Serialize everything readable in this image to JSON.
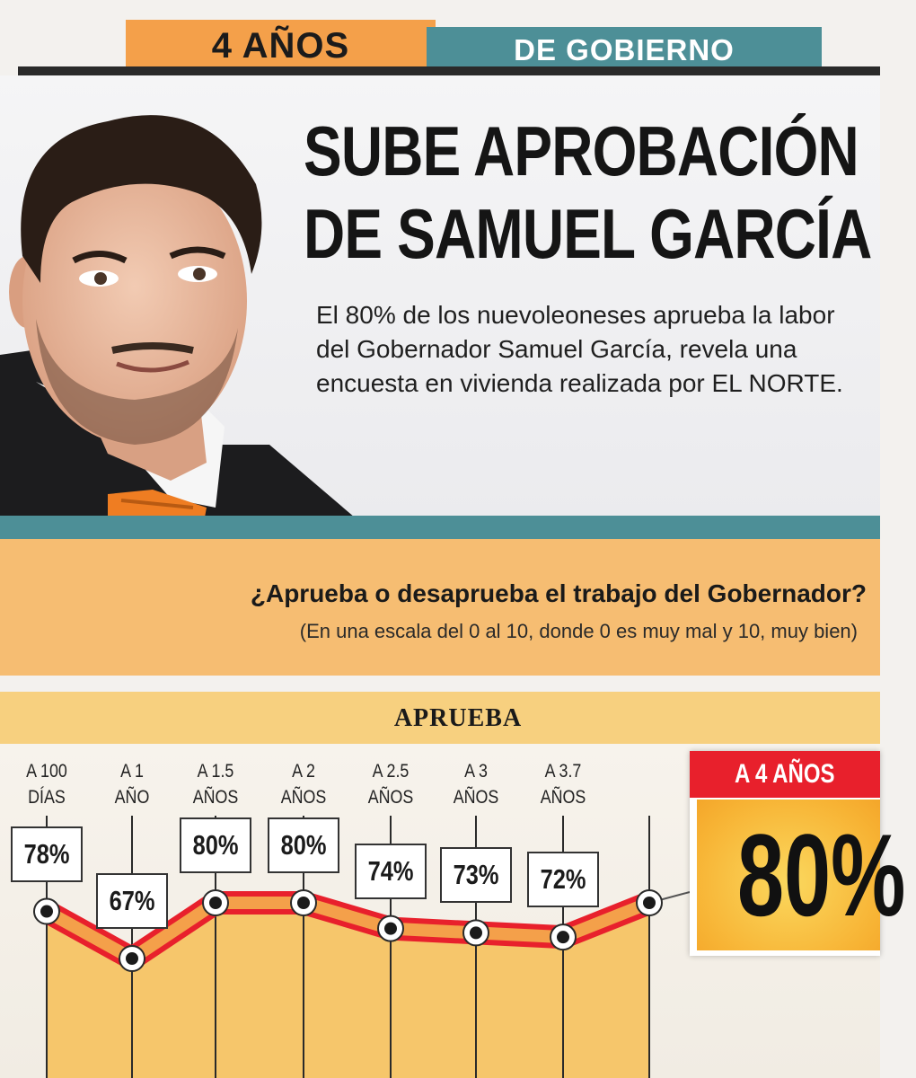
{
  "tabs": {
    "left": "4 AÑOS",
    "right": "DE GOBIERNO"
  },
  "headline": {
    "line1": "SUBE APROBACIÓN",
    "line2": "DE SAMUEL GARCÍA"
  },
  "lead": "El 80% de los nuevoleoneses aprueba la labor del Gobernador Samuel García, revela una encuesta en vivienda realizada por EL NORTE.",
  "question": {
    "title": "¿Aprueba o desaprueba el trabajo del Gobernador?",
    "subtitle": "(En una escala del 0 al 10, donde 0 es muy mal y 10, muy bien)"
  },
  "colors": {
    "orange": "#f4a04a",
    "teal": "#4d8f97",
    "red": "#e8202c",
    "yellow": "#f7d07f"
  },
  "chart_data": {
    "type": "line",
    "title": "APRUEBA",
    "categories": [
      [
        "A 100",
        "DÍAS"
      ],
      [
        "A 1",
        "AÑO"
      ],
      [
        "A 1.5",
        "AÑOS"
      ],
      [
        "A 2",
        "AÑOS"
      ],
      [
        "A 2.5",
        "AÑOS"
      ],
      [
        "A 3",
        "AÑOS"
      ],
      [
        "A 3.7",
        "AÑOS"
      ],
      [
        "A 4 AÑOS"
      ]
    ],
    "values": [
      78,
      67,
      80,
      80,
      74,
      73,
      72,
      80
    ],
    "value_labels": [
      "78%",
      "67%",
      "80%",
      "80%",
      "74%",
      "73%",
      "72%",
      "80%"
    ],
    "ylim": [
      60,
      90
    ],
    "highlight": {
      "label": "A 4 AÑOS",
      "value": "80%"
    }
  }
}
